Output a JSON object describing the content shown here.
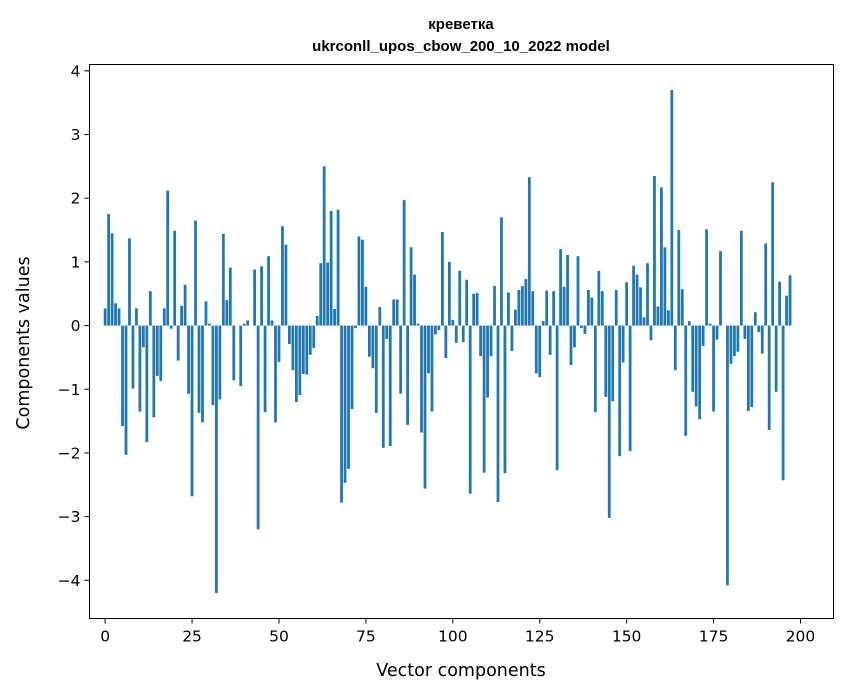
{
  "chart_data": {
    "type": "bar",
    "title": "креветка",
    "subtitle": "ukrconll_upos_cbow_200_10_2022 model",
    "xlabel": "Vector components",
    "ylabel": "Components values",
    "xlim": [
      -4.5,
      209.5
    ],
    "ylim": [
      -4.6,
      4.1
    ],
    "xticks": [
      0,
      25,
      50,
      75,
      100,
      125,
      150,
      175,
      200
    ],
    "yticks": [
      -4,
      -3,
      -2,
      -1,
      0,
      1,
      2,
      3,
      4
    ],
    "bar_color": "#1f77b4",
    "series": [
      {
        "name": "креветка",
        "x_start": 0,
        "values": [
          0.27,
          1.75,
          1.45,
          0.35,
          0.27,
          -1.58,
          -2.03,
          1.37,
          -0.99,
          0.27,
          -1.35,
          -0.34,
          -1.83,
          0.54,
          -1.44,
          -0.79,
          -0.87,
          0.27,
          2.12,
          -0.05,
          1.49,
          -0.55,
          0.31,
          0.64,
          -1.07,
          -2.68,
          1.65,
          -1.37,
          -1.52,
          0.38,
          0.03,
          -1.25,
          -4.2,
          -1.16,
          1.44,
          0.4,
          0.91,
          -0.86,
          0.0,
          -0.95,
          0.03,
          0.08,
          0.0,
          0.88,
          -3.2,
          0.93,
          -1.36,
          1.09,
          0.08,
          -1.52,
          -0.57,
          1.56,
          1.27,
          -0.29,
          -0.7,
          -1.2,
          -1.09,
          -0.76,
          -0.77,
          -0.46,
          -0.35,
          0.15,
          0.98,
          2.5,
          0.99,
          1.8,
          0.26,
          1.82,
          -2.78,
          -2.47,
          -2.25,
          -1.31,
          -0.04,
          1.4,
          1.35,
          0.61,
          -0.49,
          -0.67,
          -1.37,
          0.29,
          -1.92,
          -0.21,
          -1.89,
          0.41,
          0.41,
          -1.07,
          1.97,
          -1.56,
          1.23,
          0.8,
          0.03,
          -1.68,
          -2.56,
          -0.75,
          -1.35,
          -0.14,
          -0.07,
          1.47,
          -0.51,
          1.0,
          0.09,
          -0.27,
          0.86,
          -0.26,
          0.72,
          -2.64,
          0.5,
          0.51,
          -0.48,
          -2.31,
          -1.13,
          -0.48,
          0.62,
          -2.77,
          1.7,
          -2.32,
          0.52,
          -0.4,
          0.25,
          0.56,
          0.62,
          0.73,
          2.33,
          0.54,
          -0.75,
          -0.81,
          0.07,
          0.55,
          -0.46,
          0.54,
          -2.27,
          1.2,
          0.61,
          1.11,
          -0.62,
          -0.34,
          1.09,
          -0.04,
          -0.13,
          0.56,
          0.44,
          -1.36,
          0.86,
          0.54,
          -1.12,
          -3.02,
          -1.19,
          0.56,
          -2.05,
          -0.58,
          0.68,
          -1.97,
          0.94,
          0.8,
          0.6,
          0.13,
          0.98,
          -0.23,
          2.35,
          0.3,
          2.17,
          1.23,
          0.24,
          3.7,
          -0.7,
          1.5,
          0.57,
          -1.73,
          0.07,
          -1.04,
          -1.27,
          -1.47,
          -0.32,
          1.51,
          0.03,
          -1.35,
          -0.22,
          1.17,
          0.0,
          -4.08,
          -0.6,
          -0.48,
          -0.41,
          1.49,
          -0.21,
          -1.34,
          -1.28,
          0.21,
          -0.1,
          -0.44,
          1.29,
          -1.64,
          2.25,
          -1.04,
          0.69,
          -2.43,
          0.47,
          0.79
        ]
      }
    ]
  }
}
